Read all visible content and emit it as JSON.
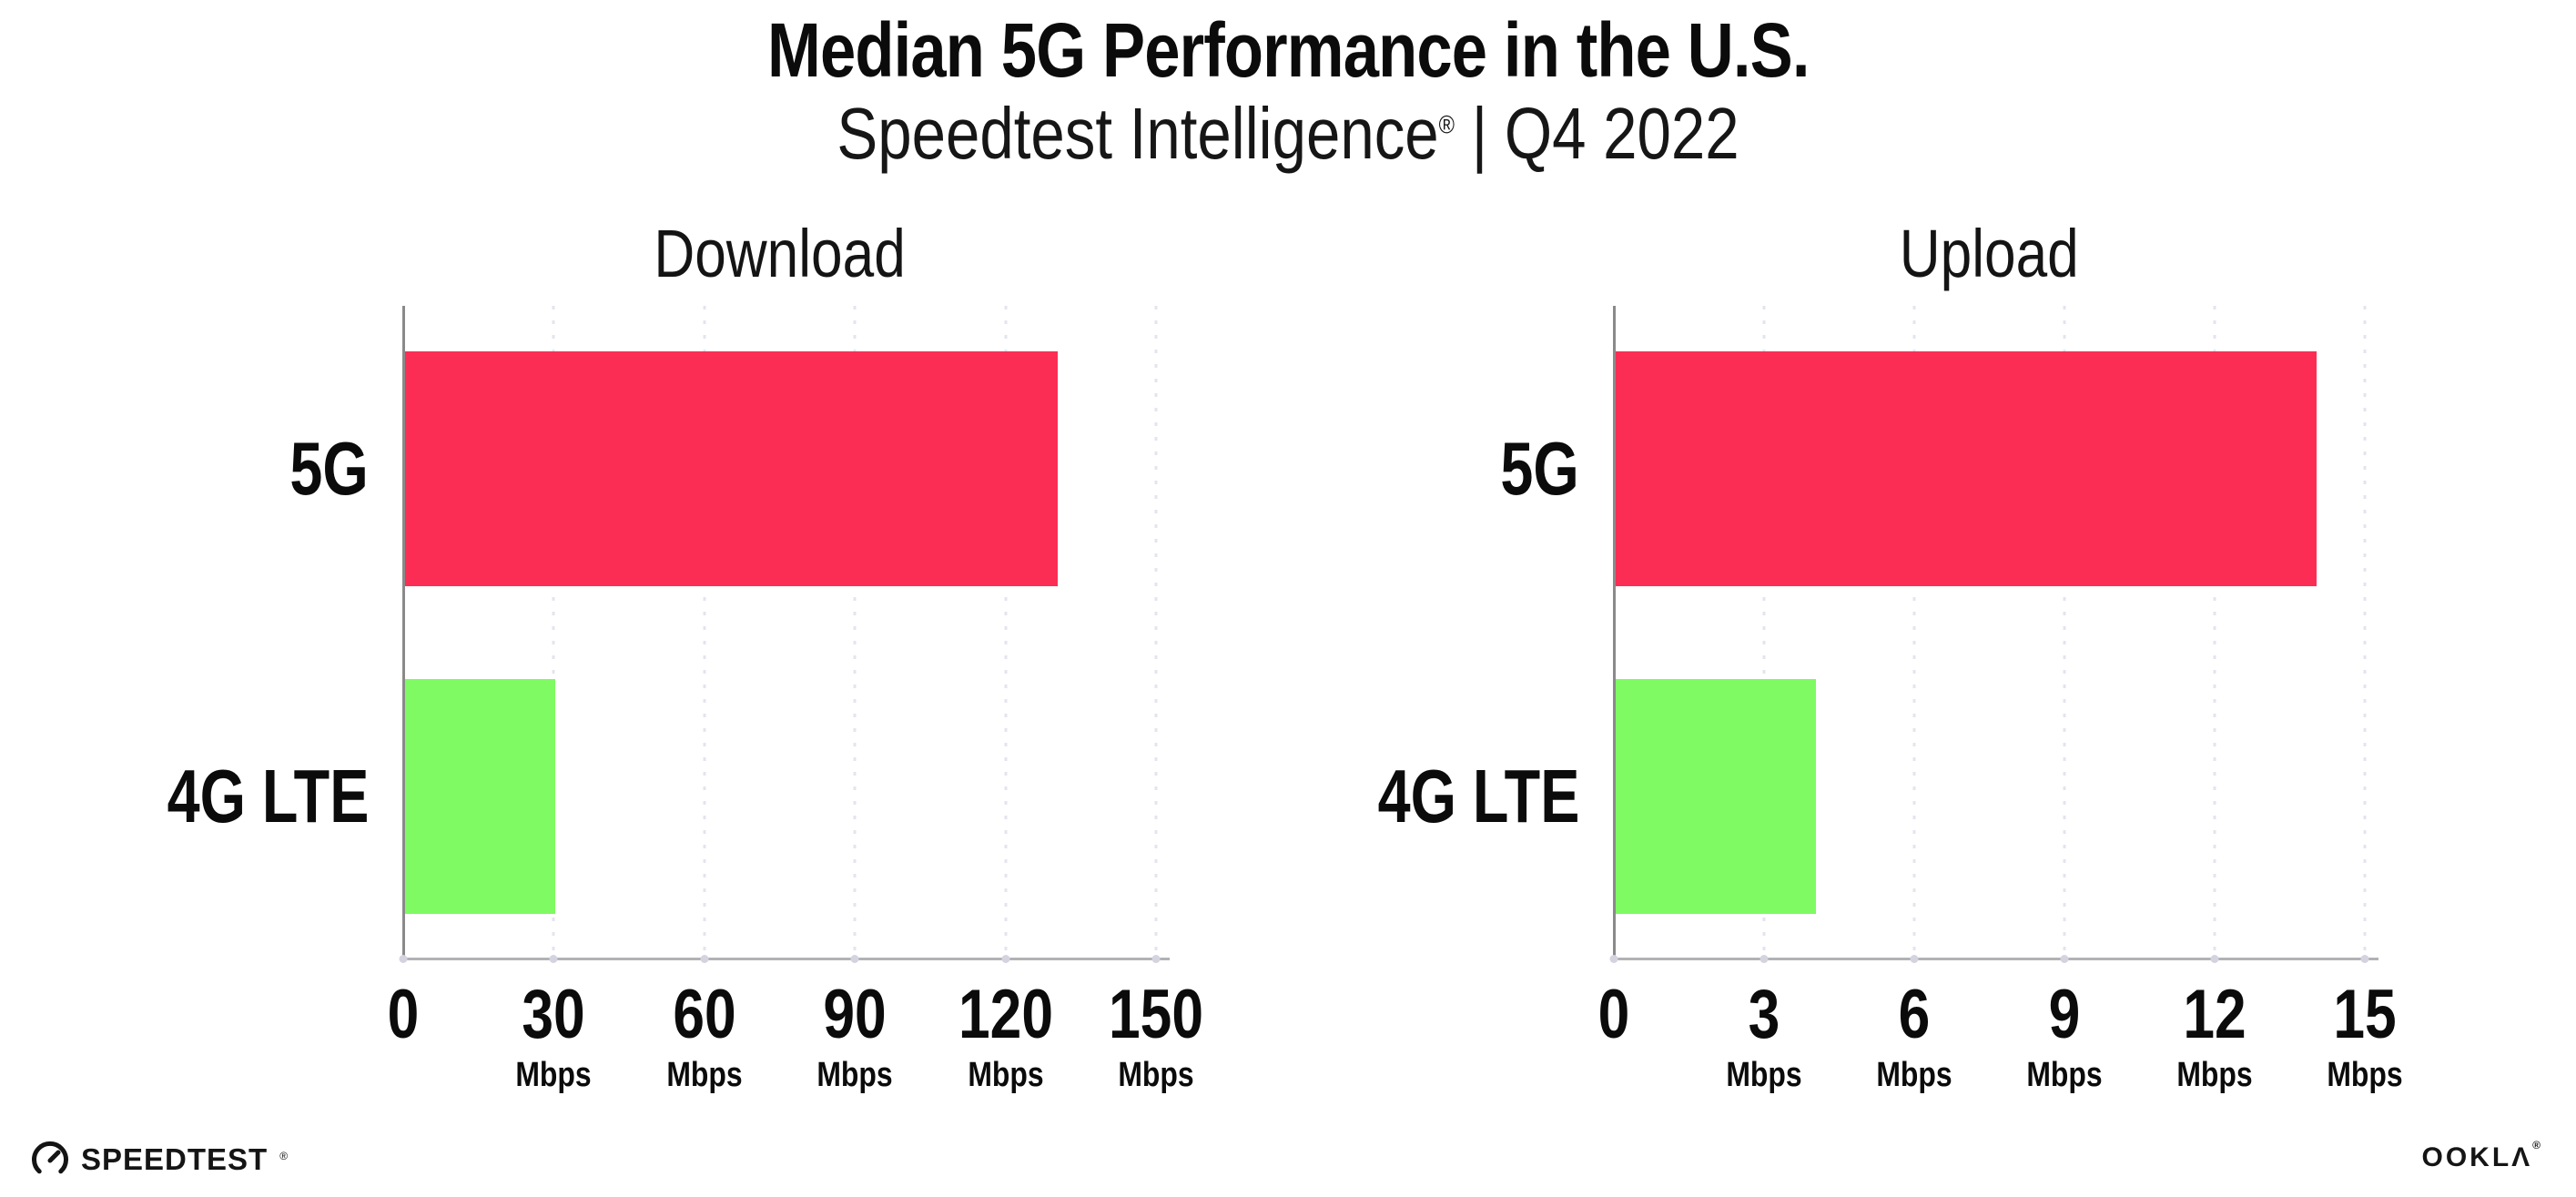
{
  "header": {
    "title": "Median 5G Performance in the U.S.",
    "subtitle": {
      "brand": "Speedtest Intelligence",
      "reg_mark": "®",
      "rest": " | Q4 2022"
    }
  },
  "colors": {
    "bar_5g": "#FB2D55",
    "bar_4g_lte": "#7FFA63",
    "gridline": "#E4E4EF",
    "y_axis": "#8A8A8A",
    "x_axis": "#B2B2B5",
    "text": "#0B0B0B"
  },
  "chart_data": [
    {
      "type": "bar",
      "orientation": "horizontal",
      "title": "Download",
      "categories": [
        "5G",
        "4G LTE"
      ],
      "values": [
        130,
        30
      ],
      "unit": "Mbps",
      "xlim": [
        0,
        150
      ],
      "xticks": [
        0,
        30,
        60,
        90,
        120,
        150
      ],
      "tick_unit": "Mbps",
      "bar_colors": [
        "#FB2D55",
        "#7FFA63"
      ],
      "grid": "dotted-vertical",
      "legend": "none"
    },
    {
      "type": "bar",
      "orientation": "horizontal",
      "title": "Upload",
      "categories": [
        "5G",
        "4G LTE"
      ],
      "values": [
        14,
        4
      ],
      "unit": "Mbps",
      "xlim": [
        0,
        15
      ],
      "xticks": [
        0,
        3,
        6,
        9,
        12,
        15
      ],
      "tick_unit": "Mbps",
      "bar_colors": [
        "#FB2D55",
        "#7FFA63"
      ],
      "grid": "dotted-vertical",
      "legend": "none"
    }
  ],
  "footer": {
    "speedtest_label": "SPEEDTEST",
    "speedtest_mark": "®",
    "ookla_label": "OOKLΛ",
    "ookla_mark": "®"
  }
}
